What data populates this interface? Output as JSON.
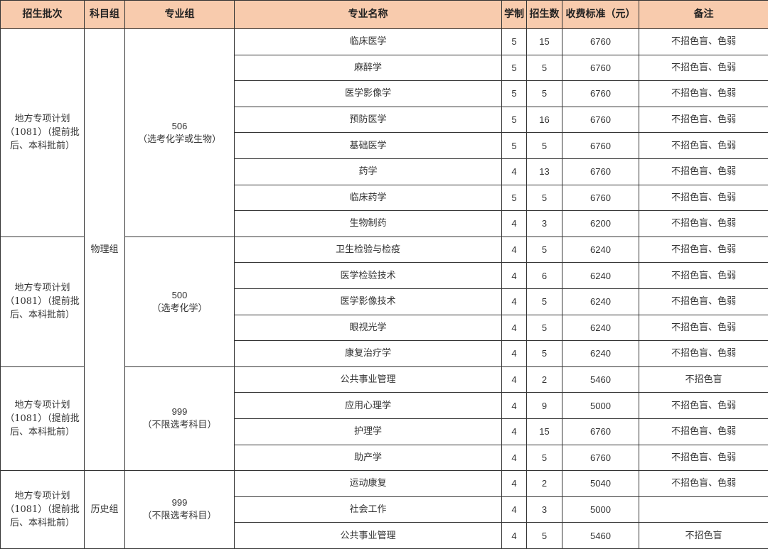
{
  "header_color": "#f8cbad",
  "headers": [
    "招生批次",
    "科目组",
    "专业组",
    "专业名称",
    "学制",
    "招生数",
    "收费标准（元）",
    "备注"
  ],
  "batches": [
    {
      "text": "地方专项计划（1081）（提前批后、本科批前）",
      "rows": 8
    },
    {
      "text": "地方专项计划（1081）（提前批后、本科批前）",
      "rows": 5
    },
    {
      "text": "地方专项计划（1081）（提前批后、本科批前）",
      "rows": 4
    },
    {
      "text": "地方专项计划（1081）（提前批后、本科批前）",
      "rows": 3
    }
  ],
  "subject_groups": [
    {
      "text": "物理组",
      "rows": 17
    },
    {
      "text": "历史组",
      "rows": 3
    }
  ],
  "major_groups": [
    {
      "code": "506",
      "requirement": "（选考化学或生物）",
      "rows": 8
    },
    {
      "code": "500",
      "requirement": "（选考化学）",
      "rows": 5
    },
    {
      "code": "999",
      "requirement": "（不限选考科目）",
      "rows": 4
    },
    {
      "code": "999",
      "requirement": "（不限选考科目）",
      "rows": 3
    }
  ],
  "rows": [
    {
      "major": "临床医学",
      "years": "5",
      "quota": "15",
      "fee": "6760",
      "note": "不招色盲、色弱"
    },
    {
      "major": "麻醉学",
      "years": "5",
      "quota": "5",
      "fee": "6760",
      "note": "不招色盲、色弱"
    },
    {
      "major": "医学影像学",
      "years": "5",
      "quota": "5",
      "fee": "6760",
      "note": "不招色盲、色弱"
    },
    {
      "major": "预防医学",
      "years": "5",
      "quota": "16",
      "fee": "6760",
      "note": "不招色盲、色弱"
    },
    {
      "major": "基础医学",
      "years": "5",
      "quota": "5",
      "fee": "6760",
      "note": "不招色盲、色弱"
    },
    {
      "major": "药学",
      "years": "4",
      "quota": "13",
      "fee": "6760",
      "note": "不招色盲、色弱"
    },
    {
      "major": "临床药学",
      "years": "5",
      "quota": "5",
      "fee": "6760",
      "note": "不招色盲、色弱"
    },
    {
      "major": "生物制药",
      "years": "4",
      "quota": "3",
      "fee": "6200",
      "note": "不招色盲、色弱"
    },
    {
      "major": "卫生检验与检疫",
      "years": "4",
      "quota": "5",
      "fee": "6240",
      "note": "不招色盲、色弱"
    },
    {
      "major": "医学检验技术",
      "years": "4",
      "quota": "6",
      "fee": "6240",
      "note": "不招色盲、色弱"
    },
    {
      "major": "医学影像技术",
      "years": "4",
      "quota": "5",
      "fee": "6240",
      "note": "不招色盲、色弱"
    },
    {
      "major": "眼视光学",
      "years": "4",
      "quota": "5",
      "fee": "6240",
      "note": "不招色盲、色弱"
    },
    {
      "major": "康复治疗学",
      "years": "4",
      "quota": "5",
      "fee": "6240",
      "note": "不招色盲、色弱"
    },
    {
      "major": "公共事业管理",
      "years": "4",
      "quota": "2",
      "fee": "5460",
      "note": "不招色盲"
    },
    {
      "major": "应用心理学",
      "years": "4",
      "quota": "9",
      "fee": "5000",
      "note": "不招色盲、色弱"
    },
    {
      "major": "护理学",
      "years": "4",
      "quota": "15",
      "fee": "6760",
      "note": "不招色盲、色弱"
    },
    {
      "major": "助产学",
      "years": "4",
      "quota": "5",
      "fee": "6760",
      "note": "不招色盲、色弱"
    },
    {
      "major": "运动康复",
      "years": "4",
      "quota": "2",
      "fee": "5040",
      "note": "不招色盲、色弱"
    },
    {
      "major": "社会工作",
      "years": "4",
      "quota": "3",
      "fee": "5000",
      "note": ""
    },
    {
      "major": "公共事业管理",
      "years": "4",
      "quota": "5",
      "fee": "5460",
      "note": "不招色盲"
    }
  ]
}
